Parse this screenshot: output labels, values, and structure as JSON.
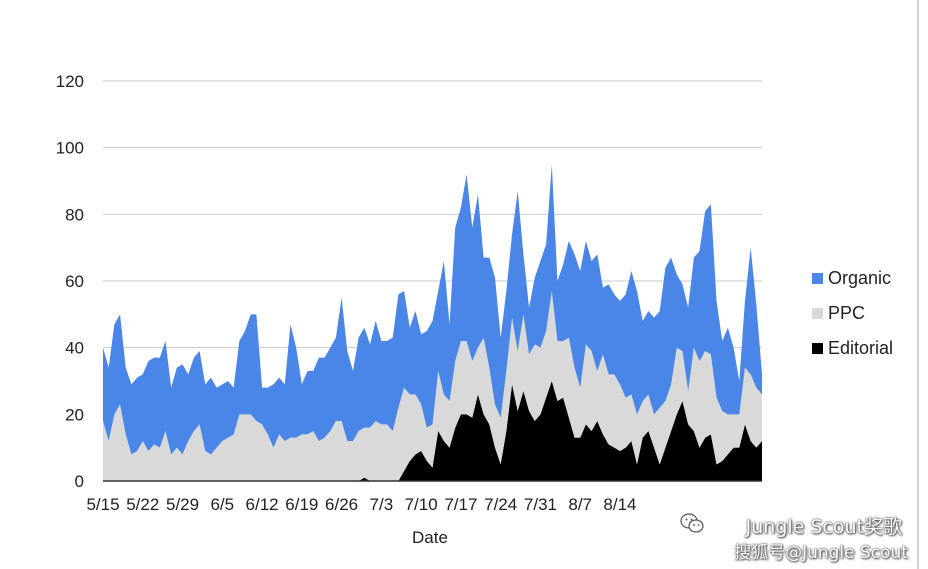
{
  "chart_data": {
    "type": "area",
    "stacked": true,
    "title": "",
    "xlabel": "Date",
    "ylabel": "",
    "ylim": [
      0,
      120
    ],
    "yticks": [
      0,
      20,
      40,
      60,
      80,
      100,
      120
    ],
    "grid": true,
    "legend_position": "right",
    "x_tick_labels": [
      "5/15",
      "5/22",
      "5/29",
      "6/5",
      "6/12",
      "6/19",
      "6/26",
      "7/3",
      "7/10",
      "7/17",
      "7/24",
      "7/31",
      "8/7",
      "8/14"
    ],
    "x_start": "5/15",
    "x_end": "8/19",
    "series": [
      {
        "name": "Editorial",
        "color": "#000000",
        "values": [
          0,
          0,
          0,
          0,
          0,
          0,
          0,
          0,
          0,
          0,
          0,
          0,
          0,
          0,
          0,
          0,
          0,
          0,
          0,
          0,
          0,
          0,
          0,
          0,
          0,
          0,
          0,
          0,
          0,
          0,
          0,
          0,
          0,
          0,
          0,
          0,
          0,
          0,
          0,
          0,
          0,
          0,
          0,
          0,
          0,
          0,
          1,
          0,
          0,
          0,
          0,
          0,
          0,
          3,
          6,
          8,
          9,
          6,
          4,
          15,
          12,
          10,
          16,
          20,
          20,
          19,
          26,
          20,
          17,
          10,
          5,
          15,
          29,
          21,
          27,
          21,
          18,
          20,
          25,
          30,
          24,
          25,
          19,
          13,
          13,
          17,
          15,
          18,
          14,
          11,
          10,
          9,
          10,
          12,
          5,
          13,
          15,
          10,
          5,
          10,
          15,
          20,
          24,
          17,
          15,
          10,
          13,
          14,
          5,
          6,
          8,
          10,
          10,
          17,
          12,
          10,
          12
        ]
      },
      {
        "name": "PPC",
        "color": "#d9d9d9",
        "values": [
          18,
          12,
          20,
          23,
          14,
          8,
          9,
          12,
          9,
          11,
          10,
          15,
          8,
          10,
          8,
          12,
          15,
          17,
          9,
          8,
          10,
          12,
          13,
          14,
          20,
          20,
          20,
          18,
          17,
          14,
          10,
          14,
          12,
          13,
          13,
          14,
          14,
          15,
          12,
          13,
          15,
          18,
          18,
          12,
          12,
          15,
          15,
          16,
          18,
          17,
          17,
          15,
          22,
          25,
          20,
          18,
          14,
          10,
          13,
          18,
          14,
          14,
          20,
          22,
          22,
          17,
          14,
          23,
          17,
          13,
          14,
          18,
          20,
          18,
          23,
          17,
          23,
          20,
          20,
          27,
          18,
          17,
          24,
          21,
          15,
          24,
          24,
          15,
          24,
          21,
          22,
          20,
          15,
          14,
          15,
          11,
          11,
          10,
          17,
          14,
          14,
          20,
          15,
          10,
          25,
          26,
          26,
          24,
          20,
          15,
          12,
          10,
          10,
          17,
          20,
          18,
          14
        ]
      },
      {
        "name": "Organic",
        "color": "#4a86e8",
        "values": [
          22,
          22,
          27,
          27,
          20,
          21,
          22,
          20,
          27,
          26,
          27,
          27,
          20,
          24,
          27,
          20,
          22,
          22,
          20,
          23,
          18,
          17,
          17,
          14,
          22,
          25,
          30,
          32,
          11,
          14,
          19,
          17,
          17,
          34,
          27,
          15,
          19,
          18,
          25,
          24,
          25,
          25,
          37,
          27,
          21,
          28,
          30,
          25,
          30,
          25,
          25,
          28,
          34,
          29,
          20,
          25,
          21,
          29,
          31,
          24,
          40,
          23,
          40,
          40,
          50,
          40,
          46,
          24,
          33,
          38,
          24,
          24,
          25,
          48,
          18,
          14,
          20,
          26,
          26,
          38,
          18,
          23,
          29,
          34,
          35,
          31,
          27,
          35,
          20,
          27,
          24,
          25,
          31,
          37,
          37,
          24,
          25,
          29,
          29,
          40,
          38,
          22,
          20,
          25,
          27,
          33,
          42,
          45,
          29,
          21,
          26,
          20,
          10,
          20,
          38,
          25,
          6
        ]
      }
    ]
  },
  "watermark": {
    "line1": "Jungle Scout奖歌",
    "line2": "搜狐号@Jungle Scout"
  }
}
